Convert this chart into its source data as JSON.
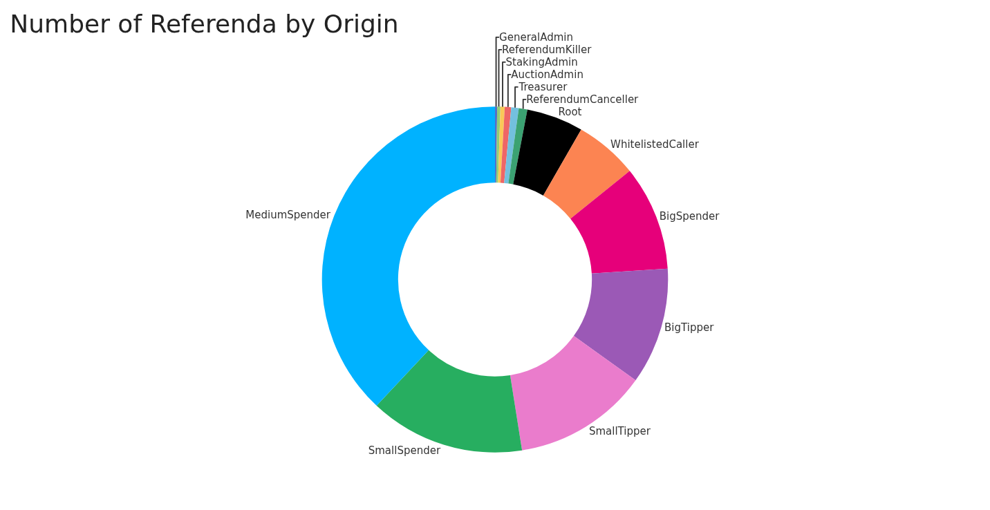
{
  "chart_data": {
    "type": "donut",
    "title": "Number of Referenda by Origin",
    "categories": [
      "GeneralAdmin",
      "ReferendumKiller",
      "StakingAdmin",
      "AuctionAdmin",
      "Treasurer",
      "ReferendumCanceller",
      "Root",
      "WhitelistedCaller",
      "BigSpender",
      "BigTipper",
      "SmallTipper",
      "SmallSpender",
      "MediumSpender"
    ],
    "values": [
      0.2,
      0.3,
      0.4,
      0.6,
      0.7,
      0.8,
      5.3,
      5.9,
      9.8,
      10.9,
      12.6,
      14.5,
      38
    ],
    "colors": [
      "#5470c6",
      "#91cc75",
      "#fac858",
      "#ee6666",
      "#73c0de",
      "#3ba272",
      "#000000",
      "#fc8452",
      "#e6007a",
      "#9b59b6",
      "#ea7ccc",
      "#27ae60",
      "#00b2ff"
    ],
    "legend": false
  }
}
